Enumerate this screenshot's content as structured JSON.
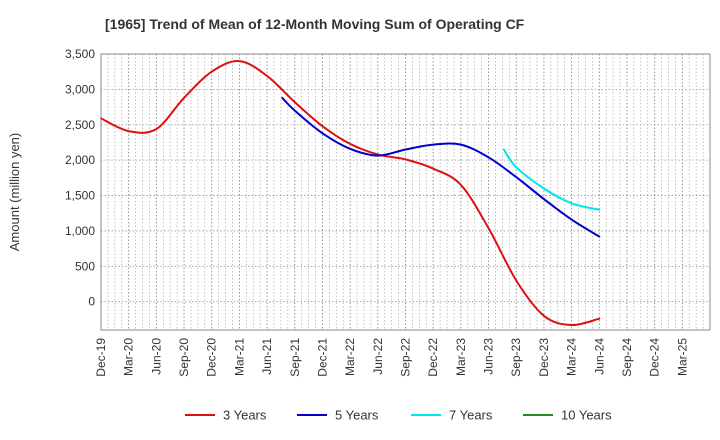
{
  "chart_data": {
    "type": "line",
    "title": "[1965]  Trend of Mean of 12-Month Moving Sum of Operating CF",
    "xlabel": "",
    "ylabel": "Amount (million yen)",
    "ylim": [
      -400,
      3500
    ],
    "yticks": [
      0,
      500,
      1000,
      1500,
      2000,
      2500,
      3000,
      3500
    ],
    "ytick_labels": [
      "0",
      "500",
      "1,000",
      "1,500",
      "2,000",
      "2,500",
      "3,000",
      "3,500"
    ],
    "xlim": [
      0,
      22
    ],
    "categories": [
      "Dec-19",
      "Mar-20",
      "Jun-20",
      "Sep-20",
      "Dec-20",
      "Mar-21",
      "Jun-21",
      "Sep-21",
      "Dec-21",
      "Mar-22",
      "Jun-22",
      "Sep-22",
      "Dec-22",
      "Mar-23",
      "Jun-23",
      "Sep-23",
      "Dec-23",
      "Mar-24",
      "Jun-24",
      "Sep-24",
      "Dec-24",
      "Mar-25"
    ],
    "grid": true,
    "legend_position": "bottom",
    "series": [
      {
        "name": "3 Years",
        "color": "#dd1111",
        "points": [
          [
            0,
            2590
          ],
          [
            1,
            2410
          ],
          [
            2,
            2440
          ],
          [
            3,
            2880
          ],
          [
            4,
            3250
          ],
          [
            5,
            3400
          ],
          [
            6,
            3190
          ],
          [
            7,
            2820
          ],
          [
            8,
            2480
          ],
          [
            9,
            2230
          ],
          [
            10,
            2080
          ],
          [
            11,
            2010
          ],
          [
            12,
            1880
          ],
          [
            13,
            1650
          ],
          [
            14,
            1040
          ],
          [
            15,
            300
          ],
          [
            16,
            -200
          ],
          [
            17,
            -330
          ],
          [
            18,
            -240
          ]
        ]
      },
      {
        "name": "5 Years",
        "color": "#0000cc",
        "points": [
          [
            6.55,
            2880
          ],
          [
            7,
            2700
          ],
          [
            8,
            2380
          ],
          [
            9,
            2160
          ],
          [
            10,
            2065
          ],
          [
            11,
            2150
          ],
          [
            12,
            2220
          ],
          [
            13,
            2220
          ],
          [
            14,
            2040
          ],
          [
            15,
            1760
          ],
          [
            16,
            1450
          ],
          [
            17,
            1160
          ],
          [
            18,
            920
          ]
        ]
      },
      {
        "name": "7 Years",
        "color": "#00e5ee",
        "points": [
          [
            14.55,
            2150
          ],
          [
            15,
            1900
          ],
          [
            16,
            1600
          ],
          [
            17,
            1390
          ],
          [
            18,
            1300
          ]
        ]
      },
      {
        "name": "10 Years",
        "color": "#228b22",
        "points": []
      }
    ]
  }
}
